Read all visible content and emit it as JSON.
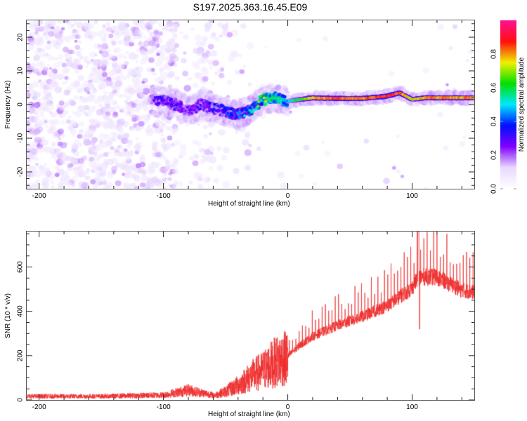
{
  "title": "S197.2025.363.16.45.E09",
  "chart_data": [
    {
      "type": "heatmap",
      "name": "spectrogram",
      "xlabel": "Height of straight line (km)",
      "ylabel": "Frequency (Hz)",
      "xlim": [
        -210,
        150
      ],
      "ylim": [
        -25,
        25
      ],
      "x_ticks": [
        -200,
        -100,
        0,
        100
      ],
      "y_ticks": [
        -20,
        -10,
        0,
        10,
        20
      ],
      "colorbar": {
        "label": "Normalized spectral amplitude",
        "range": [
          0,
          1
        ],
        "ticks": [
          "0.0",
          "0.2",
          "0.4",
          "0.6",
          "0.8"
        ],
        "colormap": [
          "#ffffff",
          "#e8d8ff",
          "#8000ff",
          "#0010ff",
          "#00e8ff",
          "#00e000",
          "#f0f000",
          "#ff1010",
          "#ff1090"
        ]
      },
      "ridge": {
        "description": "Noisy scattered amplitude below -60 km; ridge near 0 Hz descending to about -3 Hz near -40 km, then stable at ~1.5-2 Hz with high amplitude from 0 to 150 km",
        "x": [
          -110,
          -100,
          -90,
          -80,
          -70,
          -60,
          -50,
          -40,
          -30,
          -20,
          -10,
          0,
          10,
          20,
          40,
          60,
          80,
          90,
          100,
          110,
          130,
          150
        ],
        "y": [
          1.5,
          1,
          0,
          -2,
          0,
          -1,
          -2,
          -3,
          -1.5,
          1.5,
          2,
          1,
          1.5,
          2,
          1.8,
          1.8,
          2.5,
          3.5,
          1.5,
          2,
          2,
          2
        ],
        "amplitude": [
          0.2,
          0.3,
          0.3,
          0.25,
          0.25,
          0.3,
          0.35,
          0.4,
          0.45,
          0.6,
          0.6,
          0.5,
          0.65,
          0.8,
          0.9,
          0.85,
          0.95,
          0.9,
          0.75,
          0.85,
          0.85,
          0.85
        ]
      }
    },
    {
      "type": "line",
      "name": "snr",
      "xlabel": "Height of straight line (km)",
      "ylabel": "SNR (10 * v/v)",
      "xlim": [
        -210,
        150
      ],
      "ylim": [
        0,
        760
      ],
      "x_ticks": [
        -200,
        -100,
        0,
        100
      ],
      "y_ticks": [
        0,
        200,
        400,
        600
      ],
      "color": "#ee2a2a",
      "envelope": {
        "x": [
          -210,
          -150,
          -100,
          -80,
          -70,
          -60,
          -50,
          -40,
          -30,
          -20,
          -10,
          0,
          10,
          20,
          40,
          60,
          80,
          90,
          100,
          105,
          110,
          120,
          130,
          140,
          150
        ],
        "y": [
          15,
          15,
          20,
          40,
          30,
          20,
          40,
          70,
          110,
          140,
          180,
          200,
          250,
          290,
          340,
          380,
          430,
          470,
          510,
          560,
          560,
          560,
          530,
          500,
          490
        ]
      },
      "annotations": {
        "peak_value": 760,
        "peak_x": 105,
        "dip_value": 320,
        "dip_x": 106
      }
    }
  ]
}
